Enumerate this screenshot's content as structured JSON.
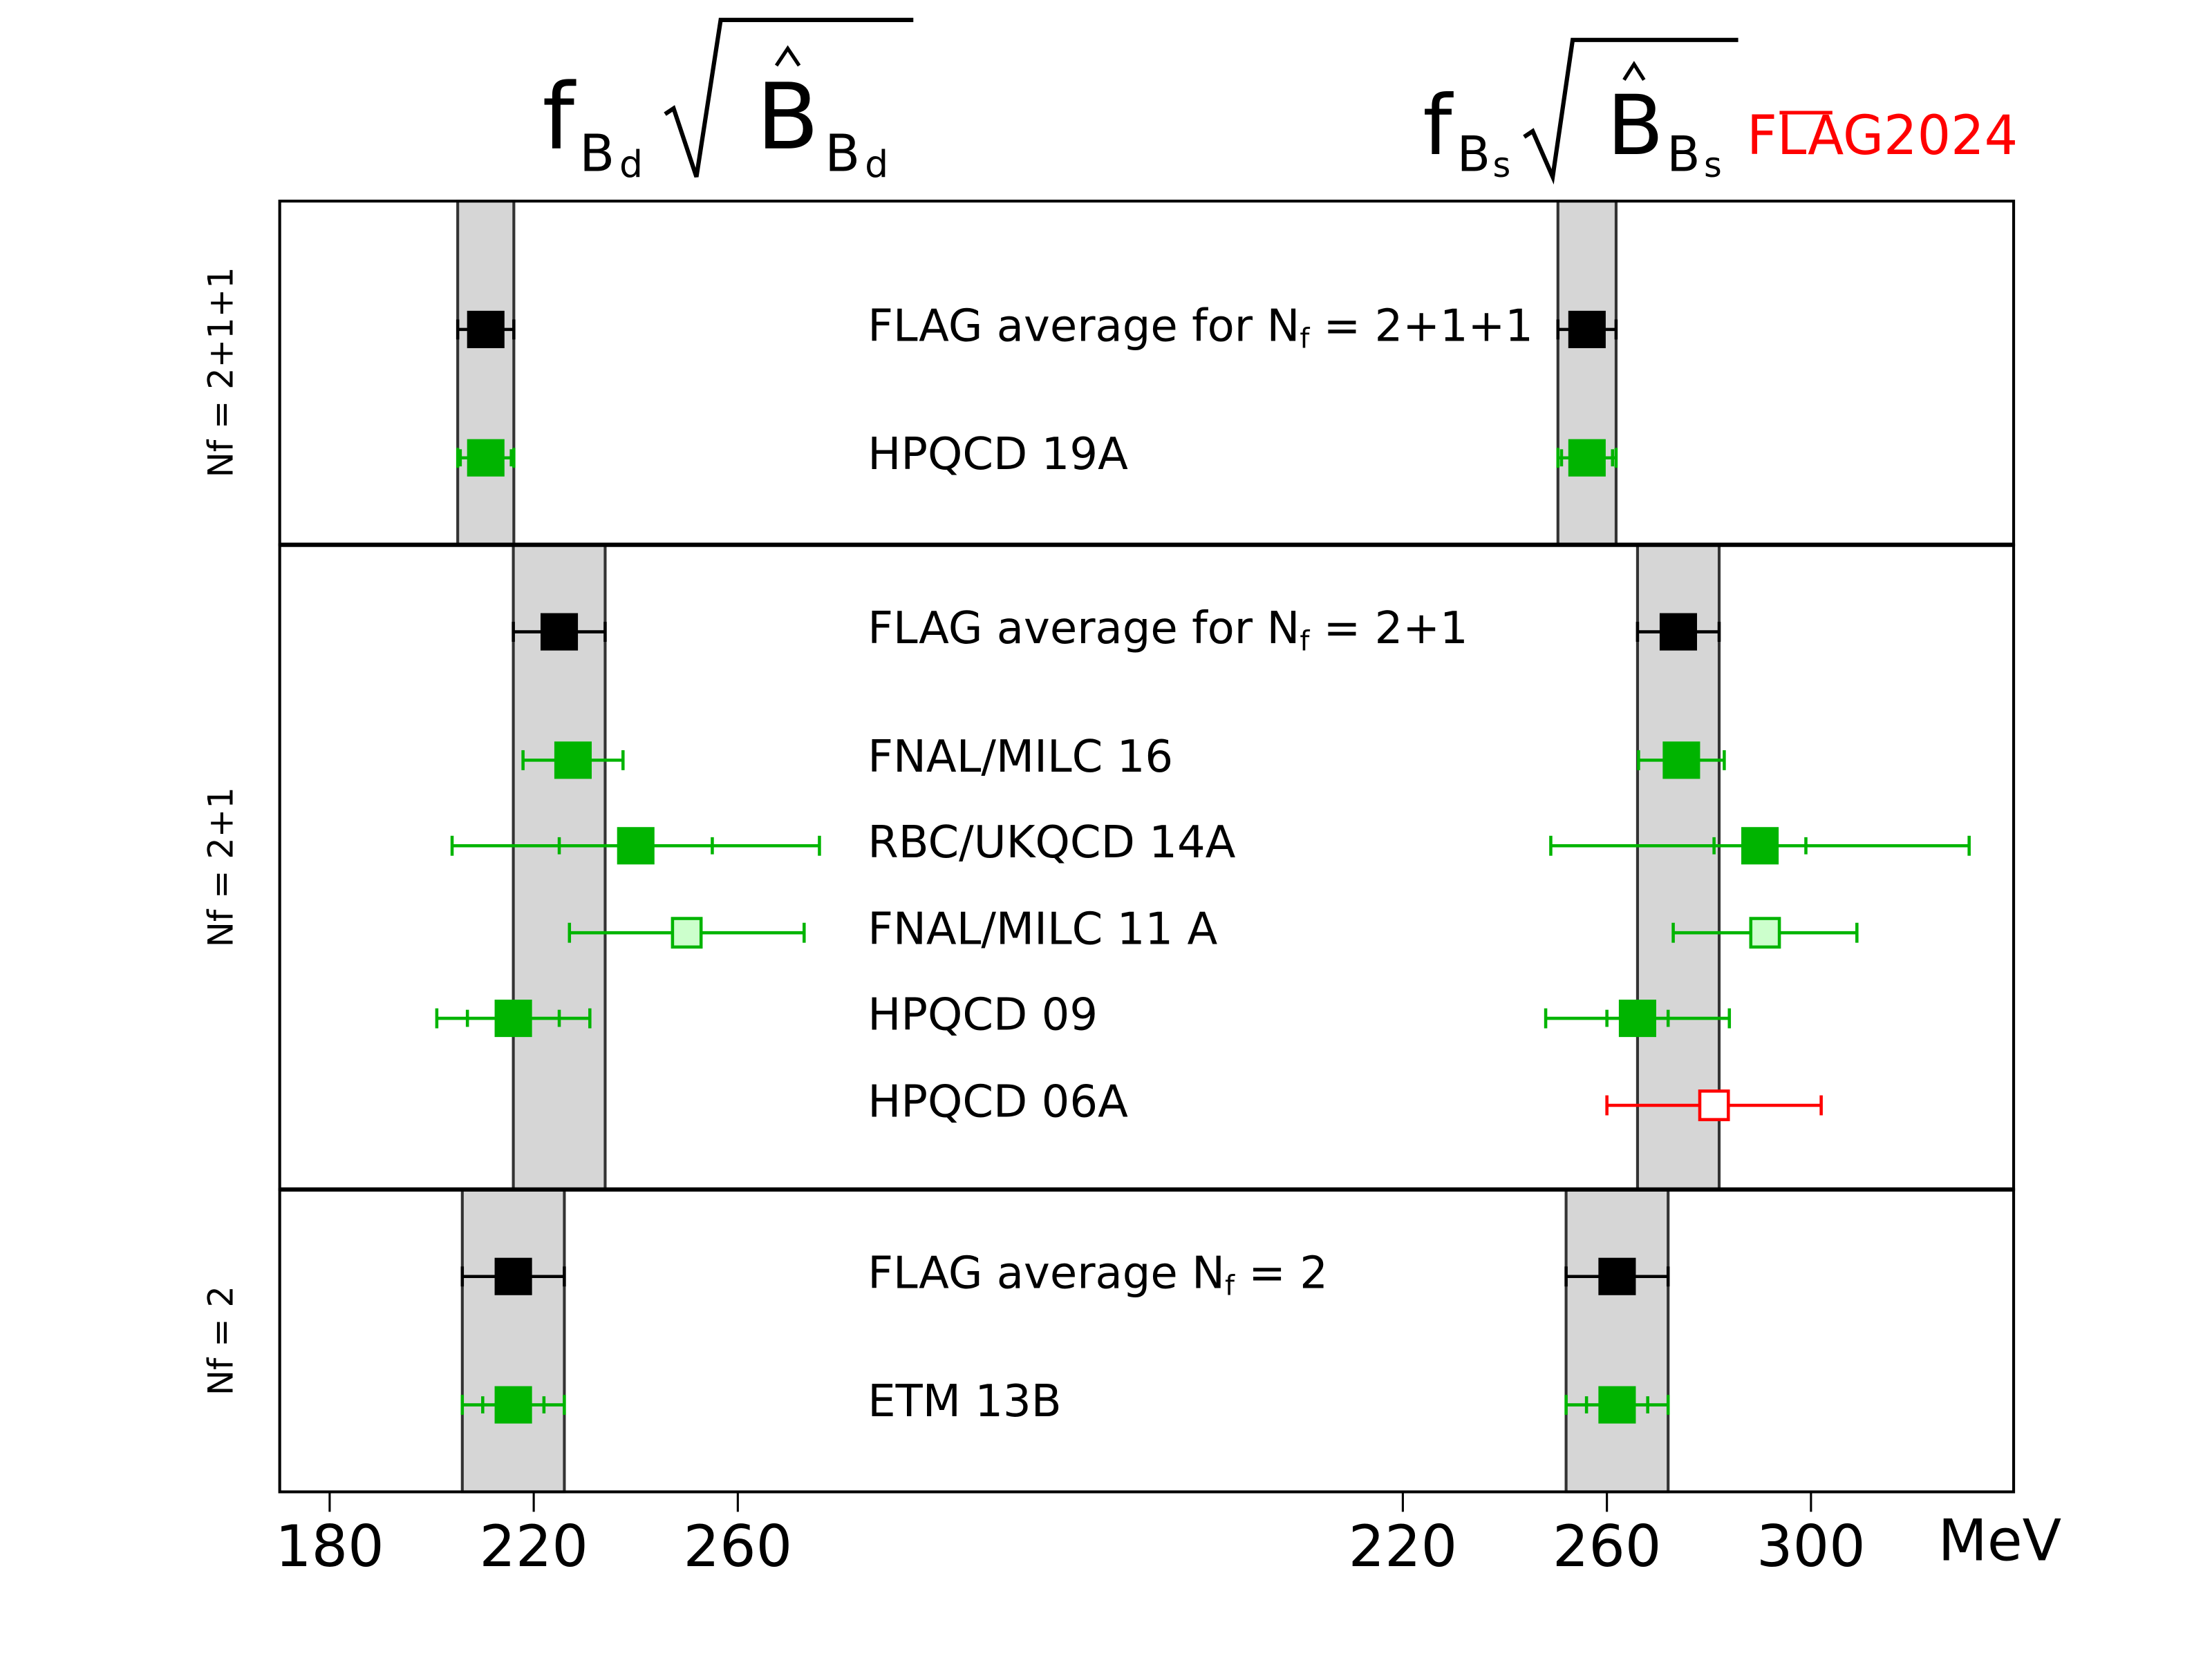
{
  "chart_data": {
    "type": "scatter",
    "subtype": "forest-plot-with-error-bars",
    "unit_label": "MeV",
    "logo": {
      "text": "FLAG2024",
      "color": "#ff0000"
    },
    "titles": {
      "left": {
        "f": "f",
        "sub": "B",
        "subsub": "d",
        "radicand": "B",
        "rsub": "B",
        "rsubsub": "d"
      },
      "right": {
        "f": "f",
        "sub": "B",
        "subsub": "s",
        "radicand": "B",
        "rsub": "B",
        "rsubsub": "s"
      }
    },
    "axes": {
      "left": {
        "xlim": [
          170,
          340
        ],
        "ticks": [
          180,
          220,
          260
        ],
        "tick_labels": [
          "180",
          "220",
          "260"
        ]
      },
      "right": {
        "xlim": [
          210,
          340
        ],
        "ticks": [
          220,
          260,
          300
        ],
        "tick_labels": [
          "220",
          "260",
          "300"
        ]
      }
    },
    "colors": {
      "average": "#000000",
      "included": "#00b400",
      "open_fill": "#ccffcc",
      "excluded": "#ff0000",
      "band": "#d6d6d6"
    },
    "panels": [
      {
        "ylabel": "Nf = 2+1+1",
        "band": {
          "left": [
            205.1,
            216.1
          ],
          "right": [
            250.4,
            261.8
          ]
        },
        "entries": [
          {
            "label": "FLAG average for Nf = 2+1+1",
            "style": "average",
            "left": {
              "value": 210.6,
              "stat": null,
              "total": 5.5
            },
            "right": {
              "value": 256.1,
              "stat": null,
              "total": 5.7
            }
          },
          {
            "label": "HPQCD 19A",
            "style": "filled",
            "left": {
              "value": 210.6,
              "stat": 5.0,
              "total": 5.5
            },
            "right": {
              "value": 256.1,
              "stat": 5.0,
              "total": 5.7
            }
          }
        ]
      },
      {
        "ylabel": "Nf = 2+1",
        "band": {
          "left": [
            216,
            234
          ],
          "right": [
            266,
            282
          ]
        },
        "entries": [
          {
            "label": "FLAG average for Nf = 2+1",
            "style": "average",
            "left": {
              "value": 225,
              "stat": null,
              "total": 9
            },
            "right": {
              "value": 274,
              "stat": null,
              "total": 8
            }
          },
          {
            "label": "FNAL/MILC 16",
            "style": "filled",
            "left": {
              "value": 227.7,
              "stat": null,
              "total": 9.8
            },
            "right": {
              "value": 274.6,
              "stat": null,
              "total": 8.4
            }
          },
          {
            "label": "RBC/UKQCD 14A",
            "style": "filled",
            "left": {
              "value": 240,
              "stat": 15,
              "total": 36
            },
            "right": {
              "value": 290,
              "stat": 9,
              "total": 41
            }
          },
          {
            "label": "FNAL/MILC 11 A",
            "style": "open",
            "left": {
              "value": 250,
              "stat": null,
              "total": 23
            },
            "right": {
              "value": 291,
              "stat": null,
              "total": 18
            }
          },
          {
            "label": "HPQCD 09",
            "style": "filled",
            "left": {
              "value": 216,
              "stat": 9,
              "total": 15
            },
            "right": {
              "value": 266,
              "stat": 6,
              "total": 18
            }
          },
          {
            "label": "HPQCD 06A",
            "style": "open-red",
            "left": null,
            "right": {
              "value": 281,
              "stat": null,
              "total": 21
            }
          }
        ]
      },
      {
        "ylabel": "Nf = 2",
        "band": {
          "left": [
            206,
            226
          ],
          "right": [
            252,
            272
          ]
        },
        "entries": [
          {
            "label": "FLAG average Nf = 2",
            "style": "average",
            "left": {
              "value": 216,
              "stat": null,
              "total": 10
            },
            "right": {
              "value": 262,
              "stat": null,
              "total": 10
            }
          },
          {
            "label": "ETM 13B",
            "style": "filled",
            "left": {
              "value": 216,
              "stat": 6,
              "total": 10
            },
            "right": {
              "value": 262,
              "stat": 6,
              "total": 10
            }
          }
        ]
      }
    ]
  }
}
